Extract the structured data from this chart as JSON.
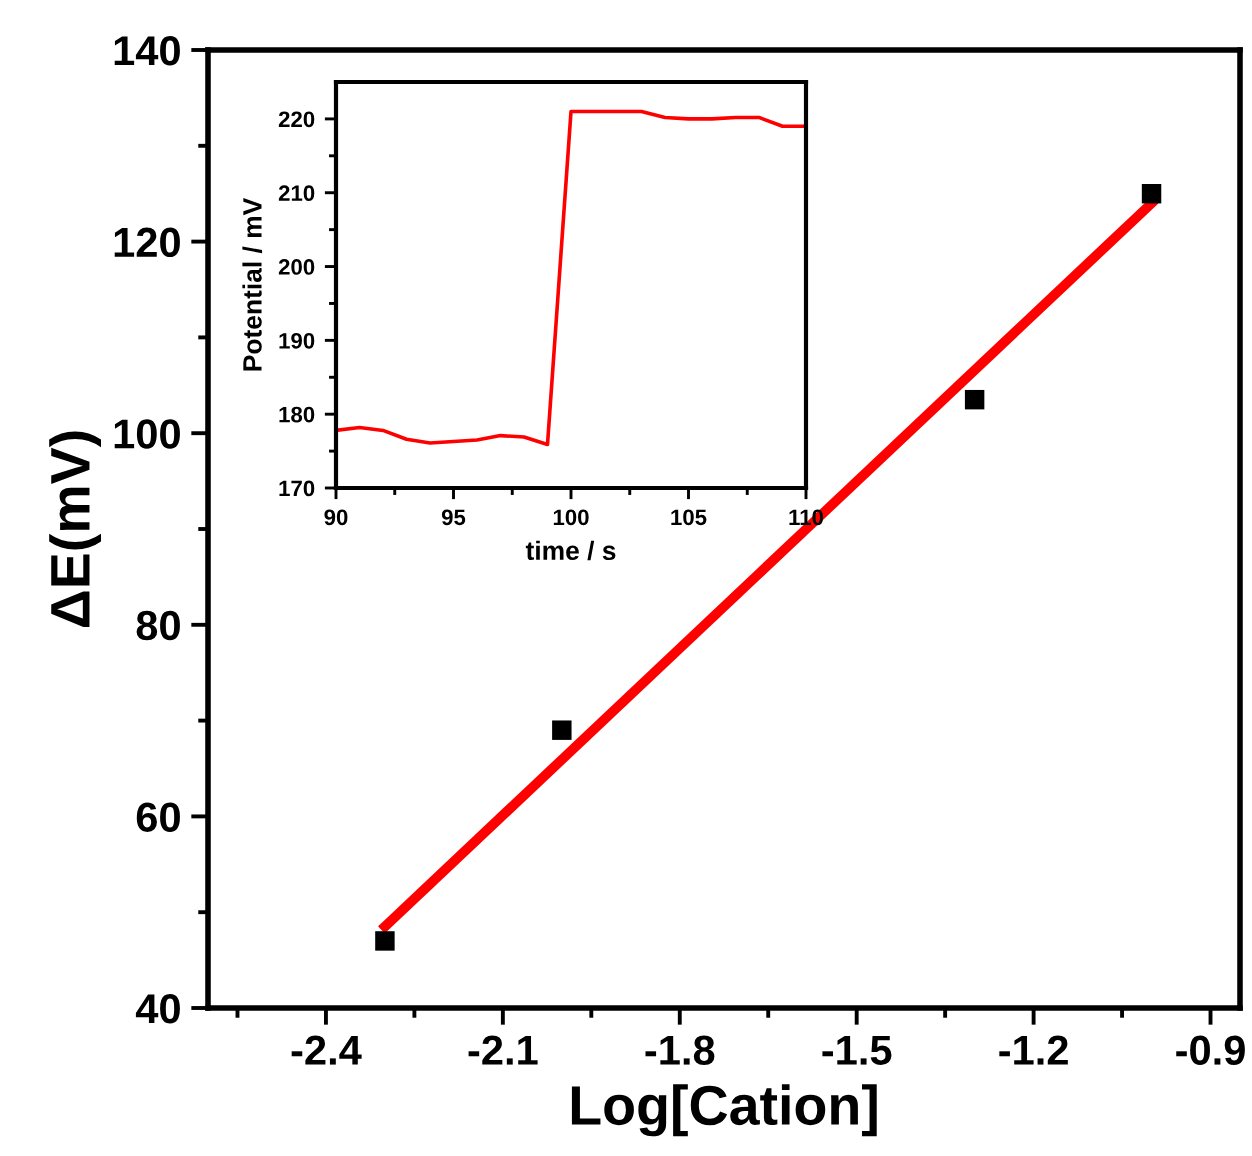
{
  "chart_data": [
    {
      "type": "scatter",
      "xlabel": "Log[Cation]",
      "ylabel": "ΔE(mV)",
      "xlim": [
        -2.6,
        -0.85
      ],
      "ylim": [
        40,
        140
      ],
      "xticks": [
        {
          "value": -2.55,
          "label": null
        },
        -2.4,
        {
          "value": -2.25,
          "label": null
        },
        -2.1,
        {
          "value": -1.95,
          "label": null
        },
        -1.8,
        {
          "value": -1.65,
          "label": null
        },
        -1.5,
        {
          "value": -1.35,
          "label": null
        },
        -1.2,
        {
          "value": -1.05,
          "label": null
        },
        -0.9
      ],
      "yticks": [
        40,
        {
          "value": 50,
          "label": null
        },
        60,
        {
          "value": 70,
          "label": null
        },
        80,
        {
          "value": 90,
          "label": null
        },
        100,
        {
          "value": 110,
          "label": null
        },
        120,
        {
          "value": 130,
          "label": null
        },
        140
      ],
      "grid": false,
      "legend": false,
      "series": [
        {
          "color": "#000000",
          "marker": "square",
          "x": [
            -2.3,
            -2.0,
            -1.3,
            -1.0
          ],
          "values": [
            47,
            69,
            103.5,
            125
          ]
        },
        {
          "type": "line",
          "color": "#ff0000",
          "line_style": "solid",
          "marker": "none",
          "x": [
            -2.3,
            -1.0
          ],
          "values": [
            48.5,
            124
          ]
        }
      ]
    },
    {
      "type": "line",
      "xlabel": "time / s",
      "ylabel": "Potential / mV",
      "xlim": [
        90,
        110
      ],
      "ylim": [
        170,
        225
      ],
      "xticks": [
        90,
        {
          "value": 92.5,
          "label": null
        },
        95,
        {
          "value": 97.5,
          "label": null
        },
        100,
        {
          "value": 102.5,
          "label": null
        },
        105,
        {
          "value": 107.5,
          "label": null
        },
        110
      ],
      "yticks": [
        170,
        {
          "value": 175,
          "label": null
        },
        180,
        {
          "value": 185,
          "label": null
        },
        190,
        {
          "value": 195,
          "label": null
        },
        200,
        {
          "value": 205,
          "label": null
        },
        210,
        {
          "value": 215,
          "label": null
        },
        220
      ],
      "grid": false,
      "legend": false,
      "series": [
        {
          "color": "#ff0000",
          "line_style": "solid",
          "marker": "none",
          "x": [
            90,
            91,
            92,
            93,
            94,
            95,
            96,
            97,
            98,
            99,
            100,
            101,
            102,
            103,
            104,
            105,
            106,
            107,
            108,
            109,
            110
          ],
          "values": [
            177.8,
            178.2,
            177.8,
            176.6,
            176.1,
            176.3,
            176.5,
            177.1,
            176.9,
            175.9,
            221,
            221,
            221,
            221,
            220.2,
            220,
            220,
            220.2,
            220.2,
            219,
            219
          ]
        }
      ]
    }
  ]
}
